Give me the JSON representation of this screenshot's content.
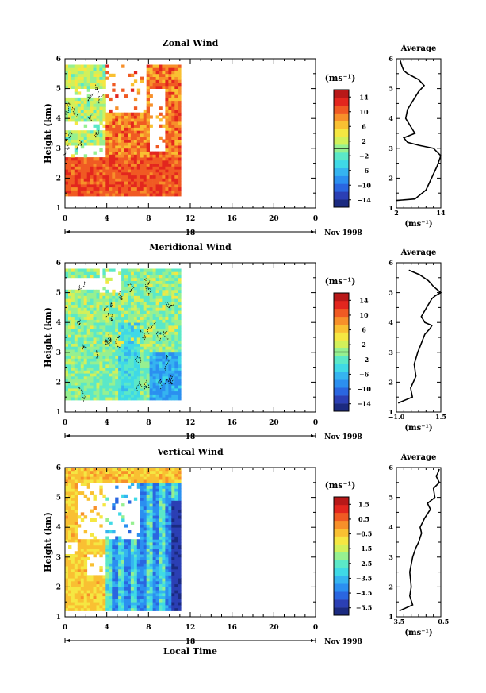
{
  "figure": {
    "xlabel": "Local Time",
    "date_label": "Nov 1998",
    "colors": {
      "jet": [
        "#1b2a80",
        "#2b3fb4",
        "#2a66e0",
        "#2b8ff0",
        "#35b4f0",
        "#3fd9e6",
        "#5be8c8",
        "#96f090",
        "#d2f05a",
        "#f5e742",
        "#f9c032",
        "#f7902a",
        "#f05a23",
        "#e3261e",
        "#b81818"
      ],
      "contour": "#000000",
      "axis": "#000000",
      "background": "#ffffff"
    }
  },
  "chart_data": [
    {
      "type": "heatmap",
      "title": "Zonal Wind",
      "ylabel": "Height (km)",
      "ylim": [
        1,
        6
      ],
      "xlim": [
        0,
        24
      ],
      "xticks": [
        "0",
        "4",
        "8",
        "12",
        "16",
        "20",
        "0"
      ],
      "xticks_minor_step": 1,
      "yticks": [
        "1",
        "2",
        "3",
        "4",
        "5",
        "6"
      ],
      "day_label": "18",
      "colorbar": {
        "unit": "(ms⁻¹)",
        "range": [
          -16,
          16
        ],
        "tick_values": [
          14,
          10,
          6,
          2,
          -2,
          -6,
          -10,
          -14
        ],
        "tick_labels": [
          "14",
          "10",
          "6",
          "2",
          "−2",
          "−6",
          "−10",
          "−14"
        ],
        "zero_line": 0
      },
      "field": {
        "x_range": [
          0,
          11.2
        ],
        "y_range": [
          1.4,
          5.7
        ],
        "pattern": "zonal"
      },
      "profile": {
        "title": "Average",
        "xlabel": "(ms⁻¹)",
        "xlim": [
          2,
          14
        ],
        "xticks": [
          "2",
          "14"
        ],
        "ylim": [
          1,
          6
        ],
        "yticks": [
          "1",
          "2",
          "3",
          "4",
          "5",
          "6"
        ],
        "points": [
          [
            2,
            1.25
          ],
          [
            7,
            1.3
          ],
          [
            10,
            1.6
          ],
          [
            11.5,
            2.0
          ],
          [
            13,
            2.4
          ],
          [
            14,
            2.75
          ],
          [
            12,
            3.0
          ],
          [
            8,
            3.1
          ],
          [
            5,
            3.2
          ],
          [
            4,
            3.35
          ],
          [
            7,
            3.5
          ],
          [
            6,
            3.7
          ],
          [
            4.5,
            4.0
          ],
          [
            5,
            4.3
          ],
          [
            6.5,
            4.6
          ],
          [
            8,
            4.9
          ],
          [
            9.5,
            5.1
          ],
          [
            8,
            5.3
          ],
          [
            5,
            5.5
          ],
          [
            4,
            5.6
          ],
          [
            3.5,
            5.75
          ],
          [
            3,
            5.95
          ]
        ]
      }
    },
    {
      "type": "heatmap",
      "title": "Meridional Wind",
      "ylabel": "Height (km)",
      "ylim": [
        1,
        6
      ],
      "xlim": [
        0,
        24
      ],
      "xticks": [
        "0",
        "4",
        "8",
        "12",
        "16",
        "20",
        "0"
      ],
      "xticks_minor_step": 1,
      "yticks": [
        "1",
        "2",
        "3",
        "4",
        "5",
        "6"
      ],
      "day_label": "18",
      "colorbar": {
        "unit": "(ms⁻¹)",
        "range": [
          -16,
          16
        ],
        "tick_values": [
          14,
          10,
          6,
          2,
          -2,
          -6,
          -10,
          -14
        ],
        "tick_labels": [
          "14",
          "10",
          "6",
          "2",
          "−2",
          "−6",
          "−10",
          "−14"
        ],
        "zero_line": 0
      },
      "field": {
        "x_range": [
          0,
          11.2
        ],
        "y_range": [
          1.4,
          5.7
        ],
        "pattern": "meridional"
      },
      "profile": {
        "title": "Average",
        "xlabel": "(ms⁻¹)",
        "xlim": [
          -1,
          1.5
        ],
        "xticks": [
          "−1.0",
          "1.5"
        ],
        "ylim": [
          1,
          6
        ],
        "yticks": [
          "1",
          "2",
          "3",
          "4",
          "5",
          "6"
        ],
        "points": [
          [
            -0.9,
            1.3
          ],
          [
            -0.1,
            1.5
          ],
          [
            -0.2,
            1.8
          ],
          [
            0.1,
            2.2
          ],
          [
            0.0,
            2.6
          ],
          [
            0.2,
            3.0
          ],
          [
            0.4,
            3.3
          ],
          [
            0.6,
            3.6
          ],
          [
            0.9,
            3.8
          ],
          [
            1.0,
            3.9
          ],
          [
            0.6,
            4.0
          ],
          [
            0.4,
            4.2
          ],
          [
            0.7,
            4.5
          ],
          [
            1.0,
            4.8
          ],
          [
            1.2,
            4.9
          ],
          [
            1.5,
            5.0
          ],
          [
            1.1,
            5.2
          ],
          [
            0.8,
            5.4
          ],
          [
            0.3,
            5.6
          ],
          [
            -0.3,
            5.75
          ]
        ]
      }
    },
    {
      "type": "heatmap",
      "title": "Vertical Wind",
      "ylabel": "Height (km)",
      "ylim": [
        1,
        6
      ],
      "xlim": [
        0,
        24
      ],
      "xticks": [
        "0",
        "4",
        "8",
        "12",
        "16",
        "20",
        "0"
      ],
      "xticks_minor_step": 1,
      "yticks": [
        "1",
        "2",
        "3",
        "4",
        "5",
        "6"
      ],
      "day_label": "18",
      "colorbar": {
        "unit": "(ms⁻¹)",
        "range": [
          -6.0,
          2.0
        ],
        "tick_values": [
          1.5,
          0.5,
          -0.5,
          -1.5,
          -2.5,
          -3.5,
          -4.5,
          -5.5
        ],
        "tick_labels": [
          "1.5",
          "0.5",
          "−0.5",
          "−1.5",
          "−2.5",
          "−3.5",
          "−4.5",
          "−5.5"
        ],
        "zero_line": null
      },
      "field": {
        "x_range": [
          0,
          11.2
        ],
        "y_range": [
          1.2,
          5.9
        ],
        "pattern": "vertical"
      },
      "profile": {
        "title": "Average",
        "xlabel": "(ms⁻¹)",
        "xlim": [
          -3.5,
          -0.5
        ],
        "xticks": [
          "−3.5",
          "−0.5"
        ],
        "ylim": [
          1,
          6
        ],
        "yticks": [
          "1",
          "2",
          "3",
          "4",
          "5",
          "6"
        ],
        "points": [
          [
            -3.3,
            1.2
          ],
          [
            -2.4,
            1.4
          ],
          [
            -2.6,
            1.7
          ],
          [
            -2.5,
            2.0
          ],
          [
            -2.6,
            2.5
          ],
          [
            -2.4,
            3.0
          ],
          [
            -2.2,
            3.3
          ],
          [
            -2.0,
            3.5
          ],
          [
            -1.8,
            3.8
          ],
          [
            -1.9,
            4.0
          ],
          [
            -1.6,
            4.3
          ],
          [
            -1.2,
            4.6
          ],
          [
            -1.4,
            4.8
          ],
          [
            -0.9,
            5.0
          ],
          [
            -1.0,
            5.3
          ],
          [
            -0.6,
            5.5
          ],
          [
            -0.8,
            5.7
          ],
          [
            -0.6,
            5.95
          ]
        ]
      }
    }
  ]
}
